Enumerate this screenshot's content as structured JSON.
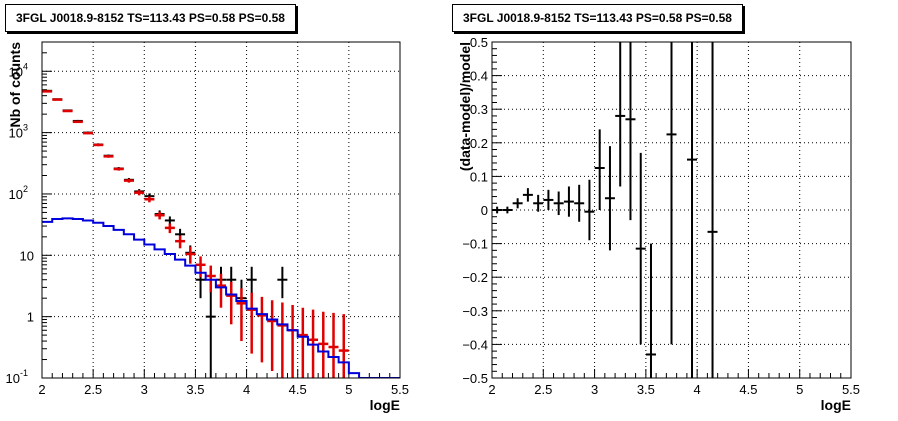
{
  "chart_data": [
    {
      "type": "scatter",
      "title": "3FGL J0018.9-8152 TS=113.43 PS=0.58 PS=0.58",
      "xlabel": "logE",
      "ylabel": "Nb of counts",
      "xlim": [
        2,
        5.5
      ],
      "ylim": [
        0.1,
        30000
      ],
      "yscale": "log",
      "grid": true,
      "x_ticks": [
        "2",
        "2.5",
        "3",
        "3.5",
        "4",
        "4.5",
        "5",
        "5.5"
      ],
      "y_ticks": [
        {
          "value": 0.1,
          "label": "10",
          "exp": "-1"
        },
        {
          "value": 1,
          "label": "1",
          "exp": ""
        },
        {
          "value": 10,
          "label": "10",
          "exp": ""
        },
        {
          "value": 100,
          "label": "10",
          "exp": "2"
        },
        {
          "value": 1000,
          "label": "10",
          "exp": "3"
        },
        {
          "value": 10000,
          "label": "10",
          "exp": "4"
        }
      ],
      "series": [
        {
          "color": "#000000",
          "style": "errorbar",
          "points": [
            {
              "x": 2.05,
              "y": 4800,
              "lo": 4700,
              "hi": 4900
            },
            {
              "x": 2.15,
              "y": 3500,
              "lo": 3400,
              "hi": 3600
            },
            {
              "x": 2.25,
              "y": 2300,
              "lo": 2220,
              "hi": 2380
            },
            {
              "x": 2.35,
              "y": 1550,
              "lo": 1490,
              "hi": 1610
            },
            {
              "x": 2.45,
              "y": 1000,
              "lo": 960,
              "hi": 1040
            },
            {
              "x": 2.55,
              "y": 640,
              "lo": 610,
              "hi": 670
            },
            {
              "x": 2.65,
              "y": 420,
              "lo": 400,
              "hi": 440
            },
            {
              "x": 2.75,
              "y": 260,
              "lo": 245,
              "hi": 275
            },
            {
              "x": 2.85,
              "y": 170,
              "lo": 158,
              "hi": 182
            },
            {
              "x": 2.95,
              "y": 110,
              "lo": 100,
              "hi": 120
            },
            {
              "x": 3.05,
              "y": 92,
              "lo": 82,
              "hi": 102
            },
            {
              "x": 3.15,
              "y": 47,
              "lo": 40,
              "hi": 54
            },
            {
              "x": 3.25,
              "y": 37,
              "lo": 31,
              "hi": 43
            },
            {
              "x": 3.35,
              "y": 22,
              "lo": 17.5,
              "hi": 27
            },
            {
              "x": 3.45,
              "y": 11,
              "lo": 7.8,
              "hi": 14.5
            },
            {
              "x": 3.55,
              "y": 4.0,
              "lo": 2.0,
              "hi": 6.5
            },
            {
              "x": 3.65,
              "y": 1.0,
              "lo": 0.1,
              "hi": 3.2
            },
            {
              "x": 3.75,
              "y": 4.0,
              "lo": 2.0,
              "hi": 6.5
            },
            {
              "x": 3.85,
              "y": 4.0,
              "lo": 2.0,
              "hi": 6.5
            },
            {
              "x": 3.95,
              "y": 2.0,
              "lo": 0.7,
              "hi": 4.0
            },
            {
              "x": 4.05,
              "y": 4.0,
              "lo": 2.0,
              "hi": 6.5
            },
            {
              "x": 4.35,
              "y": 4.0,
              "lo": 2.0,
              "hi": 6.5
            }
          ]
        },
        {
          "color": "#e00000",
          "style": "errorbar",
          "points": [
            {
              "x": 2.05,
              "y": 4700,
              "lo": 4600,
              "hi": 4800
            },
            {
              "x": 2.15,
              "y": 3450,
              "lo": 3350,
              "hi": 3550
            },
            {
              "x": 2.25,
              "y": 2250,
              "lo": 2170,
              "hi": 2330
            },
            {
              "x": 2.35,
              "y": 1500,
              "lo": 1440,
              "hi": 1560
            },
            {
              "x": 2.45,
              "y": 980,
              "lo": 940,
              "hi": 1020
            },
            {
              "x": 2.55,
              "y": 630,
              "lo": 600,
              "hi": 660
            },
            {
              "x": 2.65,
              "y": 410,
              "lo": 390,
              "hi": 430
            },
            {
              "x": 2.75,
              "y": 255,
              "lo": 240,
              "hi": 270
            },
            {
              "x": 2.85,
              "y": 165,
              "lo": 153,
              "hi": 177
            },
            {
              "x": 2.95,
              "y": 105,
              "lo": 95,
              "hi": 115
            },
            {
              "x": 3.05,
              "y": 82,
              "lo": 73,
              "hi": 91
            },
            {
              "x": 3.15,
              "y": 45,
              "lo": 38.5,
              "hi": 51.5
            },
            {
              "x": 3.25,
              "y": 28,
              "lo": 23,
              "hi": 33
            },
            {
              "x": 3.35,
              "y": 17,
              "lo": 13,
              "hi": 21
            },
            {
              "x": 3.45,
              "y": 10.5,
              "lo": 7.3,
              "hi": 13.8
            },
            {
              "x": 3.55,
              "y": 7.0,
              "lo": 4.4,
              "hi": 9.6
            },
            {
              "x": 3.65,
              "y": 4.6,
              "lo": 2.5,
              "hi": 6.8
            },
            {
              "x": 3.75,
              "y": 3.2,
              "lo": 1.4,
              "hi": 5.0
            },
            {
              "x": 3.85,
              "y": 2.2,
              "lo": 0.75,
              "hi": 3.7
            },
            {
              "x": 3.95,
              "y": 1.65,
              "lo": 0.4,
              "hi": 2.9
            },
            {
              "x": 4.05,
              "y": 1.3,
              "lo": 0.25,
              "hi": 2.45
            },
            {
              "x": 4.15,
              "y": 1.05,
              "lo": 0.18,
              "hi": 2.1
            },
            {
              "x": 4.25,
              "y": 0.85,
              "lo": 0.13,
              "hi": 1.85
            },
            {
              "x": 4.35,
              "y": 0.72,
              "lo": 0.1,
              "hi": 1.7
            },
            {
              "x": 4.45,
              "y": 0.6,
              "lo": 0.1,
              "hi": 1.55
            },
            {
              "x": 4.55,
              "y": 0.5,
              "lo": 0.1,
              "hi": 1.4
            },
            {
              "x": 4.65,
              "y": 0.42,
              "lo": 0.1,
              "hi": 1.3
            },
            {
              "x": 4.75,
              "y": 0.36,
              "lo": 0.1,
              "hi": 1.2
            },
            {
              "x": 4.85,
              "y": 0.32,
              "lo": 0.1,
              "hi": 1.15
            },
            {
              "x": 4.95,
              "y": 0.28,
              "lo": 0.1,
              "hi": 1.1
            }
          ]
        },
        {
          "color": "#0000dd",
          "style": "step",
          "edges": [
            2.0,
            2.1,
            2.2,
            2.3,
            2.4,
            2.5,
            2.6,
            2.7,
            2.8,
            2.9,
            3.0,
            3.1,
            3.2,
            3.3,
            3.4,
            3.5,
            3.6,
            3.7,
            3.8,
            3.9,
            4.0,
            4.1,
            4.2,
            4.3,
            4.4,
            4.5,
            4.6,
            4.7,
            4.8,
            4.9,
            5.0,
            5.1,
            5.2,
            5.3,
            5.4,
            5.5
          ],
          "values": [
            35,
            39,
            40,
            39,
            37,
            34,
            30,
            26,
            22,
            18,
            15,
            12.5,
            10.5,
            8.5,
            6.8,
            5.2,
            4.0,
            3.0,
            2.3,
            1.8,
            1.35,
            1.1,
            0.9,
            0.75,
            0.6,
            0.47,
            0.35,
            0.27,
            0.22,
            0.18,
            0.12,
            0.1,
            0.1,
            0.1,
            0.1
          ]
        }
      ]
    },
    {
      "type": "scatter",
      "title": "3FGL J0018.9-8152 TS=113.43 PS=0.58 PS=0.58",
      "xlabel": "logE",
      "ylabel": "(data-model)/model",
      "xlim": [
        2,
        5.5
      ],
      "ylim": [
        -0.5,
        0.5
      ],
      "grid": true,
      "x_ticks": [
        "2",
        "2.5",
        "3",
        "3.5",
        "4",
        "4.5",
        "5",
        "5.5"
      ],
      "y_ticks": [
        "−0.5",
        "−0.4",
        "−0.3",
        "−0.2",
        "−0.1",
        "0",
        "0.1",
        "0.2",
        "0.3",
        "0.4",
        "0.5"
      ],
      "series": [
        {
          "color": "#000000",
          "style": "errorbar",
          "points": [
            {
              "x": 2.05,
              "y": 0.0,
              "lo": -0.01,
              "hi": 0.01
            },
            {
              "x": 2.15,
              "y": 0.0,
              "lo": -0.01,
              "hi": 0.01
            },
            {
              "x": 2.25,
              "y": 0.02,
              "lo": 0.005,
              "hi": 0.035
            },
            {
              "x": 2.35,
              "y": 0.045,
              "lo": 0.025,
              "hi": 0.065
            },
            {
              "x": 2.45,
              "y": 0.02,
              "lo": -0.005,
              "hi": 0.045
            },
            {
              "x": 2.55,
              "y": 0.03,
              "lo": 0.0,
              "hi": 0.06
            },
            {
              "x": 2.65,
              "y": 0.02,
              "lo": -0.015,
              "hi": 0.055
            },
            {
              "x": 2.75,
              "y": 0.025,
              "lo": -0.02,
              "hi": 0.07
            },
            {
              "x": 2.85,
              "y": 0.02,
              "lo": -0.035,
              "hi": 0.075
            },
            {
              "x": 2.95,
              "y": -0.005,
              "lo": -0.09,
              "hi": 0.09
            },
            {
              "x": 3.05,
              "y": 0.125,
              "lo": 0.0,
              "hi": 0.24
            },
            {
              "x": 3.15,
              "y": 0.035,
              "lo": -0.12,
              "hi": 0.19
            },
            {
              "x": 3.25,
              "y": 0.28,
              "lo": 0.07,
              "hi": 0.5
            },
            {
              "x": 3.35,
              "y": 0.27,
              "lo": -0.03,
              "hi": 0.5
            },
            {
              "x": 3.45,
              "y": -0.115,
              "lo": -0.4,
              "hi": 0.17
            },
            {
              "x": 3.55,
              "y": -0.43,
              "lo": -0.5,
              "hi": -0.1
            },
            {
              "x": 3.75,
              "y": 0.225,
              "lo": -0.4,
              "hi": 0.5
            },
            {
              "x": 3.95,
              "y": 0.15,
              "lo": -0.5,
              "hi": 0.5
            },
            {
              "x": 4.15,
              "y": -0.065,
              "lo": -0.5,
              "hi": 0.5
            }
          ]
        }
      ]
    }
  ]
}
